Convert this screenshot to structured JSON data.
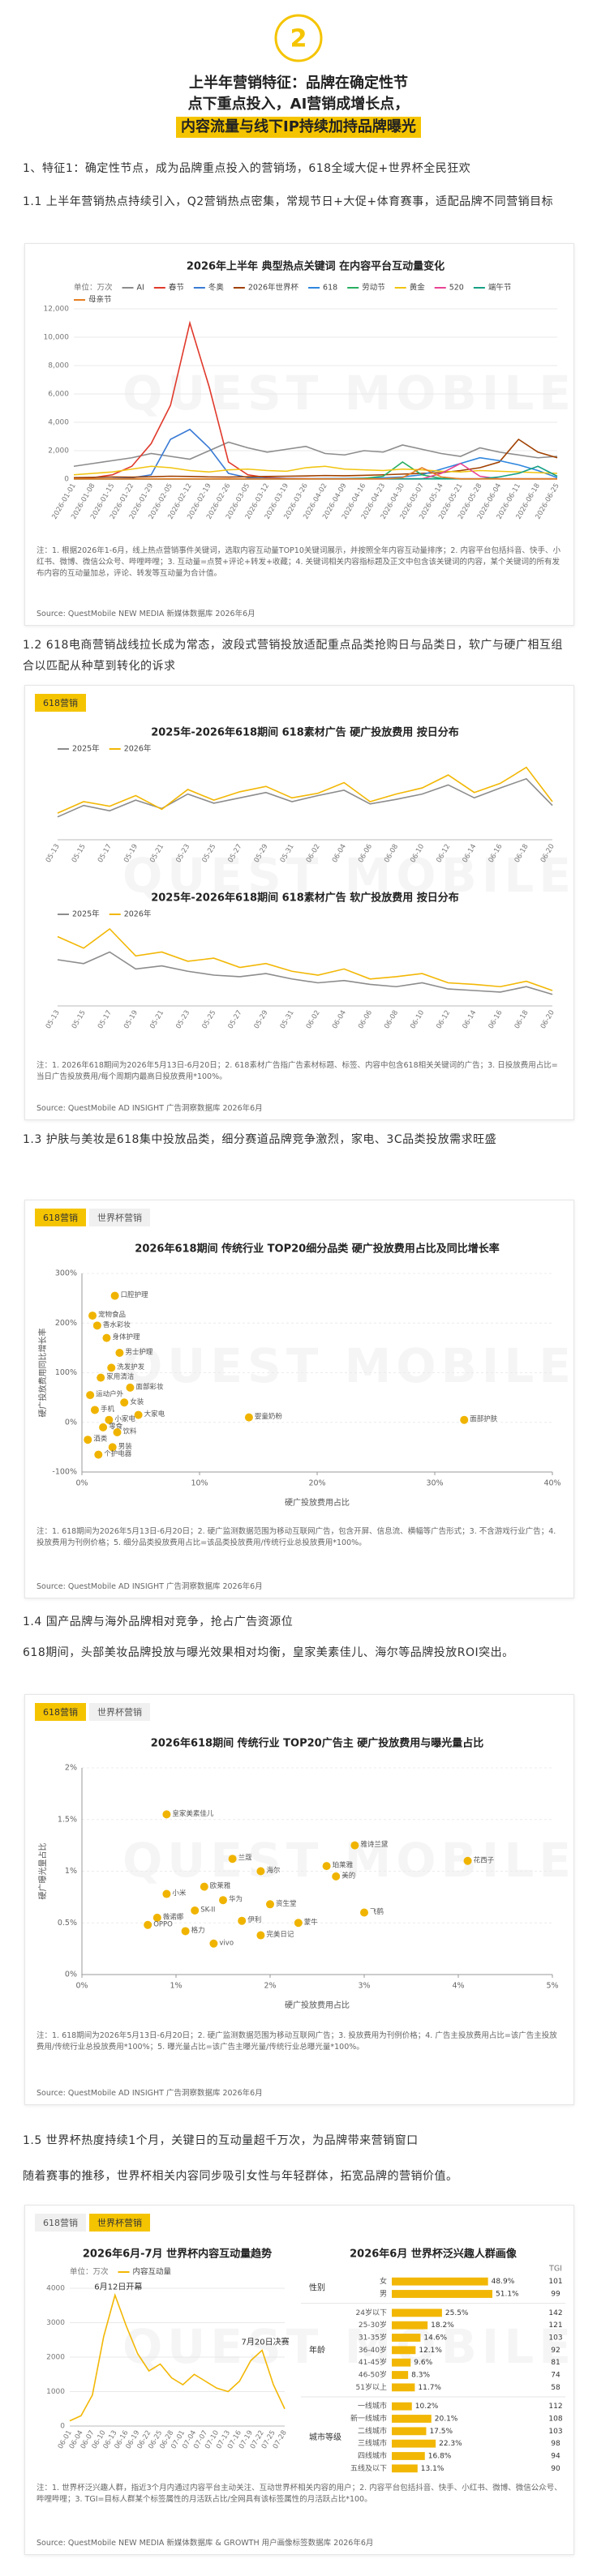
{
  "header": {
    "number": "2",
    "title_lines": [
      "上半年营销特征：品牌在确定性节",
      "点下重点投入，AI营销成增长点，",
      "内容流量与线下IP持续加持品牌曝光"
    ]
  },
  "watermark": "QUEST MOBILE",
  "paragraphs": [
    "1、特征1：确定性节点，成为品牌重点投入的营销场，618全域大促+世界杯全民狂欢",
    "1.1 上半年营销热点持续引入，Q2营销热点密集，常规节日+大促+体育赛事，适配品牌不同营销目标",
    "1.2 618电商营销战线拉长成为常态，波段式营销投放适配重点品类抢购日与品类日，软广与硬广相互组合以匹配从种草到转化的诉求",
    "1.3 护肤与美妆是618集中投放品类，细分赛道品牌竞争激烈，家电、3C品类投放需求旺盛",
    "1.4 国产品牌与海外品牌相对竞争，抢占广告资源位",
    "618期间，头部美妆品牌投放与曝光效果相对均衡，皇家美素佳儿、海尔等品牌投放ROI突出。",
    "1.5 世界杯热度持续1个月，关键日的互动量超千万次，为品牌带来营销窗口",
    "随着赛事的推移，世界杯相关内容同步吸引女性与年轻群体，拓宽品牌的营销价值。"
  ],
  "panels": [
    {
      "tabs": [],
      "active_tab": null,
      "notes": "注：1. 根据2026年1-6月，线上热点营销事件关键词，选取内容互动量TOP10关键词展示，并按照全年内容互动量排序；2. 内容平台包括抖音、快手、小红书、微博、微信公众号、哔哩哔哩；3. 互动量=点赞+评论+转发+收藏；4. 关键词相关内容指标题及正文中包含该关键词的内容，某个关键词的所有发布内容的互动量加总，评论、转发等互动量为合计值。",
      "source": "Source: QuestMobile NEW MEDIA 新媒体数据库 2026年6月"
    },
    {
      "tabs": [
        "618营销"
      ],
      "active_tab": 0,
      "notes": "注：1. 2026年618期间为2026年5月13日-6月20日；2. 618素材广告指广告素材标题、标签、内容中包含618相关关键词的广告；3. 日投放费用占比=当日广告投放费用/每个周期内最高日投放费用*100%。",
      "source": "Source: QuestMobile AD INSIGHT 广告洞察数据库 2026年6月"
    },
    {
      "tabs": [
        "618营销",
        "世界杯营销"
      ],
      "active_tab": 0,
      "notes": "注：1. 618期间为2026年5月13日-6月20日；2. 硬广监测数据范围为移动互联网广告，包含开屏、信息流、横幅等广告形式；3. 不含游戏行业广告；4. 投放费用为刊例价格；5. 细分品类投放费用占比=该品类投放费用/传统行业总投放费用*100%。",
      "source": "Source: QuestMobile AD INSIGHT 广告洞察数据库 2026年6月"
    },
    {
      "tabs": [
        "618营销",
        "世界杯营销"
      ],
      "active_tab": 0,
      "notes": "注：1. 618期间为2026年5月13日-6月20日；2. 硬广监测数据范围为移动互联网广告；3. 投放费用为刊例价格；4. 广告主投放费用占比=该广告主投放费用/传统行业总投放费用*100%；5. 曝光量占比=该广告主曝光量/传统行业总曝光量*100%。",
      "source": "Source: QuestMobile AD INSIGHT 广告洞察数据库 2026年6月"
    },
    {
      "tabs": [
        "618营销",
        "世界杯营销"
      ],
      "active_tab": 1,
      "notes": "注：1. 世界杯泛兴趣人群，指近3个月内通过内容平台主动关注、互动世界杯相关内容的用户；2. 内容平台包括抖音、快手、小红书、微博、微信公众号、哔哩哔哩；3. TGI=目标人群某个标签属性的月活跃占比/全网具有该标签属性的月活跃占比*100。",
      "source": "Source: QuestMobile NEW MEDIA 新媒体数据库 & GROWTH 用户画像标签数据库 2026年6月"
    }
  ],
  "chart_data": [
    {
      "type": "line",
      "title": "2026年上半年 典型热点关键词 在内容平台互动量变化",
      "unit": "单位：万次",
      "grid": true,
      "categories": [
        "2026-01-01",
        "2026-01-08",
        "2026-01-15",
        "2026-01-22",
        "2026-01-29",
        "2026-02-05",
        "2026-02-12",
        "2026-02-19",
        "2026-02-26",
        "2026-03-05",
        "2026-03-12",
        "2026-03-19",
        "2026-03-26",
        "2026-04-02",
        "2026-04-09",
        "2026-04-16",
        "2026-04-23",
        "2026-04-30",
        "2026-05-07",
        "2026-05-14",
        "2026-05-21",
        "2026-05-28",
        "2026-06-04",
        "2026-06-11",
        "2026-06-18",
        "2026-06-25"
      ],
      "ylim": [
        0,
        12000
      ],
      "yticks": [
        0,
        {
          "value": 2000,
          "label": "2,000"
        },
        {
          "value": 4000,
          "label": "4,000"
        },
        {
          "value": 6000,
          "label": "6,000"
        },
        {
          "value": 8000,
          "label": "8,000"
        },
        {
          "value": 10000,
          "label": "10,000"
        },
        {
          "value": 12000,
          "label": "12,000"
        }
      ],
      "series": [
        {
          "name": "AI",
          "color": "#8c8c8c",
          "values": [
            900,
            1100,
            1300,
            1500,
            1800,
            1600,
            1400,
            2000,
            2600,
            2200,
            1900,
            2100,
            2300,
            1800,
            1700,
            2000,
            1900,
            2400,
            2100,
            1800,
            1600,
            2200,
            1900,
            1700,
            1500,
            1600
          ]
        },
        {
          "name": "春节",
          "color": "#e0392b",
          "values": [
            50,
            100,
            300,
            900,
            2500,
            5200,
            11000,
            6500,
            1200,
            300,
            100,
            50,
            30,
            20,
            20,
            20,
            20,
            20,
            20,
            20,
            20,
            20,
            20,
            20,
            20,
            20
          ]
        },
        {
          "name": "冬奥",
          "color": "#3a7bd5",
          "values": [
            20,
            20,
            30,
            80,
            300,
            2800,
            3500,
            2200,
            400,
            100,
            50,
            30,
            20,
            20,
            20,
            20,
            20,
            20,
            20,
            20,
            20,
            20,
            20,
            20,
            20,
            20
          ]
        },
        {
          "name": "2026年世界杯",
          "color": "#a04000",
          "values": [
            100,
            120,
            150,
            130,
            160,
            200,
            180,
            150,
            140,
            160,
            180,
            200,
            220,
            250,
            230,
            260,
            300,
            350,
            400,
            450,
            600,
            800,
            1200,
            2800,
            1900,
            1500
          ]
        },
        {
          "name": "618",
          "color": "#2e86de",
          "values": [
            10,
            10,
            10,
            10,
            10,
            10,
            10,
            10,
            10,
            10,
            10,
            10,
            20,
            30,
            40,
            60,
            80,
            150,
            300,
            700,
            1100,
            1500,
            1300,
            1000,
            600,
            100
          ]
        },
        {
          "name": "劳动节",
          "color": "#27ae60",
          "values": [
            10,
            10,
            10,
            10,
            10,
            10,
            10,
            10,
            10,
            10,
            10,
            10,
            10,
            10,
            10,
            50,
            200,
            1200,
            300,
            50,
            10,
            10,
            10,
            10,
            10,
            10
          ]
        },
        {
          "name": "黄金",
          "color": "#f1c40f",
          "values": [
            300,
            400,
            500,
            700,
            900,
            800,
            600,
            500,
            650,
            700,
            600,
            550,
            800,
            900,
            700,
            650,
            600,
            700,
            650,
            550,
            500,
            600,
            550,
            500,
            450,
            400
          ]
        },
        {
          "name": "520",
          "color": "#e84393",
          "values": [
            10,
            10,
            10,
            10,
            10,
            10,
            10,
            10,
            10,
            10,
            10,
            10,
            10,
            10,
            10,
            10,
            10,
            10,
            10,
            400,
            1100,
            200,
            10,
            10,
            10,
            10
          ]
        },
        {
          "name": "端午节",
          "color": "#16a085",
          "values": [
            10,
            10,
            10,
            10,
            10,
            10,
            10,
            10,
            10,
            10,
            10,
            10,
            10,
            10,
            10,
            10,
            10,
            10,
            10,
            10,
            10,
            10,
            150,
            400,
            900,
            200
          ]
        },
        {
          "name": "母亲节",
          "color": "#e67e22",
          "values": [
            10,
            10,
            10,
            10,
            10,
            10,
            10,
            10,
            10,
            10,
            10,
            10,
            10,
            10,
            10,
            10,
            10,
            100,
            800,
            150,
            10,
            10,
            10,
            10,
            10,
            10
          ]
        }
      ]
    },
    {
      "type": "line",
      "title": "2025年-2026年618期间 618素材广告 硬广投放费用 按日分布",
      "grid": false,
      "categories": [
        "05-13",
        "05-15",
        "05-17",
        "05-19",
        "05-21",
        "05-23",
        "05-25",
        "05-27",
        "05-29",
        "05-31",
        "06-02",
        "06-04",
        "06-06",
        "06-08",
        "06-10",
        "06-12",
        "06-14",
        "06-16",
        "06-18",
        "06-20"
      ],
      "ylim": [
        0,
        100
      ],
      "series": [
        {
          "name": "2025年",
          "color": "#8c8c8c",
          "values": [
            30,
            45,
            38,
            52,
            41,
            60,
            48,
            55,
            62,
            50,
            58,
            65,
            47,
            53,
            60,
            72,
            55,
            68,
            80,
            45
          ]
        },
        {
          "name": "2026年",
          "color": "#f2b705",
          "values": [
            35,
            50,
            44,
            58,
            40,
            66,
            52,
            63,
            70,
            55,
            61,
            75,
            50,
            60,
            68,
            85,
            62,
            74,
            95,
            50
          ]
        }
      ]
    },
    {
      "type": "line",
      "title": "2025年-2026年618期间 618素材广告 软广投放费用 按日分布",
      "grid": false,
      "categories": [
        "05-13",
        "05-15",
        "05-17",
        "05-19",
        "05-21",
        "05-23",
        "05-25",
        "05-27",
        "05-29",
        "05-31",
        "06-02",
        "06-04",
        "06-06",
        "06-08",
        "06-10",
        "06-12",
        "06-14",
        "06-16",
        "06-18",
        "06-20"
      ],
      "ylim": [
        0,
        100
      ],
      "series": [
        {
          "name": "2025年",
          "color": "#8c8c8c",
          "values": [
            60,
            55,
            70,
            48,
            52,
            45,
            40,
            38,
            42,
            35,
            30,
            33,
            28,
            25,
            30,
            22,
            20,
            18,
            25,
            15
          ]
        },
        {
          "name": "2026年",
          "color": "#f2b705",
          "values": [
            90,
            75,
            100,
            65,
            70,
            58,
            62,
            50,
            55,
            45,
            40,
            48,
            35,
            38,
            42,
            30,
            28,
            25,
            32,
            20
          ]
        }
      ]
    },
    {
      "type": "scatter",
      "title": "2026年618期间 传统行业 TOP20细分品类 硬广投放费用占比及同比增长率",
      "x_label": "硬广投放费用占比",
      "y_label": "硬广投放费用同比增长率",
      "color": "#f0b400",
      "grid": true,
      "xlim": [
        0,
        40
      ],
      "xticks": [
        {
          "value": 0,
          "label": "0%"
        },
        {
          "value": 10,
          "label": "10%"
        },
        {
          "value": 20,
          "label": "20%"
        },
        {
          "value": 30,
          "label": "30%"
        },
        {
          "value": 40,
          "label": "40%"
        }
      ],
      "ylim": [
        -100,
        300
      ],
      "yticks": [
        {
          "value": -100,
          "label": "-100%"
        },
        {
          "value": 0,
          "label": "0%"
        },
        {
          "value": 100,
          "label": "100%"
        },
        {
          "value": 200,
          "label": "200%"
        },
        {
          "value": 300,
          "label": "300%"
        }
      ],
      "labels": [
        "面部护肤",
        "婴童奶粉",
        "口腔护理",
        "宠物食品",
        "香水彩妆",
        "身体护理",
        "男士护理",
        "洗发护发",
        "家用清洁",
        "面部彩妆",
        "运动户外",
        "女装",
        "手机",
        "大家电",
        "小家电",
        "零食",
        "饮料",
        "酒类",
        "男装",
        "个护电器"
      ],
      "x": [
        32.5,
        14.2,
        2.8,
        0.9,
        1.3,
        2.1,
        3.2,
        2.5,
        1.6,
        4.1,
        0.7,
        3.6,
        1.1,
        4.8,
        2.3,
        1.8,
        3.0,
        0.5,
        2.6,
        1.4
      ],
      "values": [
        5,
        10,
        255,
        215,
        195,
        170,
        140,
        110,
        90,
        70,
        55,
        40,
        25,
        15,
        5,
        -10,
        -20,
        -35,
        -50,
        -65
      ]
    },
    {
      "type": "scatter",
      "title": "2026年618期间 传统行业 TOP20广告主 硬广投放费用与曝光量占比",
      "x_label": "硬广投放费用占比",
      "y_label": "硬广曝光量占比",
      "color": "#f0b400",
      "grid": true,
      "xlim": [
        0,
        5
      ],
      "xticks": [
        {
          "value": 0,
          "label": "0%"
        },
        {
          "value": 1,
          "label": "1%"
        },
        {
          "value": 2,
          "label": "2%"
        },
        {
          "value": 3,
          "label": "3%"
        },
        {
          "value": 4,
          "label": "4%"
        },
        {
          "value": 5,
          "label": "5%"
        }
      ],
      "ylim": [
        0,
        2
      ],
      "yticks": [
        {
          "value": 0,
          "label": "0%"
        },
        {
          "value": 0.5,
          "label": "0.5%"
        },
        {
          "value": 1,
          "label": "1%"
        },
        {
          "value": 1.5,
          "label": "1.5%"
        },
        {
          "value": 2,
          "label": "2%"
        }
      ],
      "labels": [
        "皇家美素佳儿",
        "雅诗兰黛",
        "花西子",
        "珀莱雅",
        "兰蔻",
        "海尔",
        "美的",
        "欧莱雅",
        "小米",
        "华为",
        "资生堂",
        "SK-II",
        "薇诺娜",
        "伊利",
        "蒙牛",
        "飞鹤",
        "格力",
        "完美日记",
        "OPPO",
        "vivo"
      ],
      "x": [
        0.9,
        2.9,
        4.1,
        2.6,
        1.6,
        1.9,
        2.7,
        1.3,
        0.9,
        1.5,
        2.0,
        1.2,
        0.8,
        1.7,
        2.3,
        3.0,
        1.1,
        1.9,
        0.7,
        1.4
      ],
      "values": [
        1.55,
        1.25,
        1.1,
        1.05,
        1.12,
        1.0,
        0.95,
        0.85,
        0.78,
        0.72,
        0.68,
        0.62,
        0.55,
        0.52,
        0.5,
        0.6,
        0.42,
        0.38,
        0.48,
        0.3
      ]
    },
    {
      "type": "line",
      "title": "2026年6月-7月 世界杯内容互动量趋势",
      "unit": "单位：万次",
      "grid": true,
      "categories": [
        "06-01",
        "06-04",
        "06-07",
        "06-10",
        "06-13",
        "06-16",
        "06-19",
        "06-22",
        "06-25",
        "06-28",
        "07-01",
        "07-04",
        "07-07",
        "07-10",
        "07-13",
        "07-16",
        "07-19",
        "07-22",
        "07-25",
        "07-28"
      ],
      "ylim": [
        0,
        4000
      ],
      "yticks": [
        0,
        1000,
        2000,
        3000,
        4000
      ],
      "annotations": [
        "6月12日开幕",
        "7月20日决赛"
      ],
      "series": [
        {
          "name": "内容互动量",
          "color": "#f2b705",
          "values": [
            150,
            300,
            900,
            2600,
            3800,
            2900,
            2100,
            1600,
            1800,
            1400,
            1200,
            1500,
            1300,
            1100,
            1000,
            1300,
            1900,
            2200,
            1200,
            500
          ]
        }
      ]
    },
    {
      "type": "hbar",
      "title": "2026年6月 世界杯泛兴趣人群画像",
      "color": "#f2b705",
      "tgi_label": "TGI",
      "groups": [
        {
          "name": "性别",
          "categories": [
            "女",
            "男"
          ],
          "values": [
            48.9,
            51.1
          ],
          "value_labels": [
            "48.9%",
            "51.1%"
          ],
          "tgi": [
            101,
            99
          ]
        },
        {
          "name": "年龄",
          "categories": [
            "24岁以下",
            "25-30岁",
            "31-35岁",
            "36-40岁",
            "41-45岁",
            "46-50岁",
            "51岁以上"
          ],
          "values": [
            25.5,
            18.2,
            14.6,
            12.1,
            9.6,
            8.3,
            11.7
          ],
          "value_labels": [
            "25.5%",
            "18.2%",
            "14.6%",
            "12.1%",
            "9.6%",
            "8.3%",
            "11.7%"
          ],
          "tgi": [
            142,
            121,
            103,
            92,
            81,
            74,
            58
          ]
        },
        {
          "name": "城市等级",
          "categories": [
            "一线城市",
            "新一线城市",
            "二线城市",
            "三线城市",
            "四线城市",
            "五线及以下"
          ],
          "values": [
            10.2,
            20.1,
            17.5,
            22.3,
            16.8,
            13.1
          ],
          "value_labels": [
            "10.2%",
            "20.1%",
            "17.5%",
            "22.3%",
            "16.8%",
            "13.1%"
          ],
          "tgi": [
            112,
            108,
            103,
            98,
            94,
            90
          ]
        }
      ]
    }
  ]
}
